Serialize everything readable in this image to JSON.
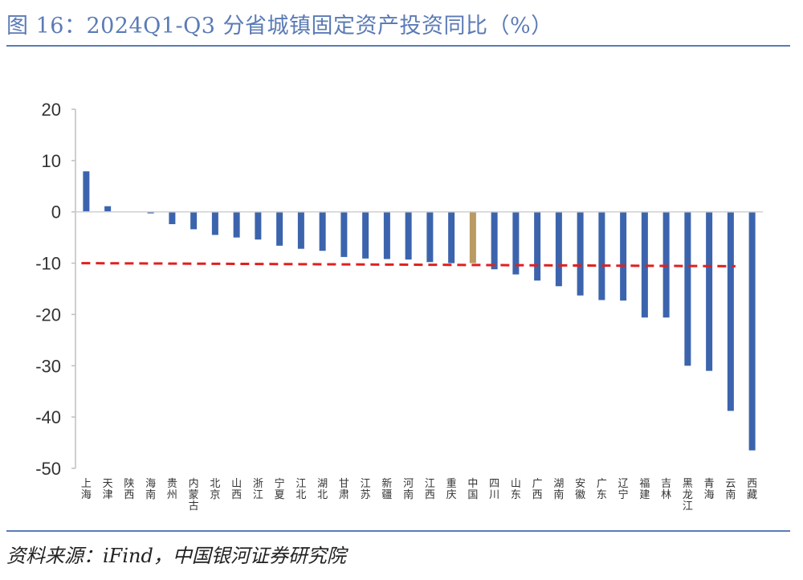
{
  "header": {
    "title": "图 16：2024Q1-Q3 分省城镇固定资产投资同比（%）"
  },
  "footer": {
    "source": "资料来源：iFind，中国银河证券研究院"
  },
  "chart_data": {
    "type": "bar",
    "title": "图 16：2024Q1-Q3 分省城镇固定资产投资同比（%）",
    "ylim": [
      -50,
      20
    ],
    "yticks": [
      20,
      10,
      0,
      -10,
      -20,
      -30,
      -40,
      -50
    ],
    "ytick_labels": [
      "20",
      "10",
      "0",
      "-10",
      "-20",
      "-30",
      "-40",
      "-50"
    ],
    "grid": false,
    "categories": [
      "上海",
      "天津",
      "陕西",
      "海南",
      "贵州",
      "内蒙古",
      "北京",
      "山西",
      "浙江",
      "宁夏",
      "江北",
      "湖北",
      "甘肃",
      "江苏",
      "新疆",
      "河南",
      "江西",
      "重庆",
      "中国",
      "四川",
      "山东",
      "广西",
      "湖南",
      "安徽",
      "广东",
      "辽宁",
      "福建",
      "吉林",
      "黑龙江",
      "青海",
      "云南",
      "西藏"
    ],
    "values": [
      7.9,
      1.1,
      0.0,
      -0.3,
      -2.4,
      -3.4,
      -4.5,
      -5.0,
      -5.4,
      -6.6,
      -7.2,
      -7.6,
      -8.8,
      -9.1,
      -9.2,
      -9.3,
      -9.8,
      -10.0,
      -10.0,
      -11.2,
      -12.2,
      -13.4,
      -14.5,
      -16.3,
      -17.2,
      -17.3,
      -20.6,
      -20.6,
      -30.0,
      -31.0,
      -38.8,
      -46.5
    ],
    "highlight": {
      "category": "中国",
      "color": "#b99a63"
    },
    "series_color": "#3c64ad",
    "reference_line": {
      "from_category": "上海",
      "to_category": "云南",
      "y_start": -10.0,
      "y_end": -10.6,
      "color": "#e02020",
      "style": "dashed"
    }
  }
}
